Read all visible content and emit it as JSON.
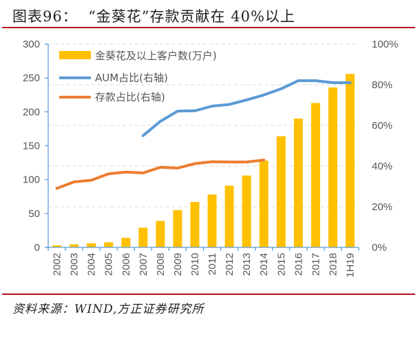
{
  "header": {
    "title": "图表96：  “金葵花”存款贡献在 40%以上"
  },
  "footer": {
    "source": "资料来源：WIND,方正证券研究所"
  },
  "colors": {
    "bars": "#FFC000",
    "aum_line": "#5B9BD5",
    "deposit_line": "#ED7D31",
    "axis": "#5B9BD5",
    "grid": "#D9D9D9",
    "rule": "#B3121C"
  },
  "chart_data": {
    "type": "bar",
    "title": "“金葵花”存款贡献在 40%以上",
    "xlabel": "",
    "ylabel": "",
    "categories": [
      "2002",
      "2003",
      "2004",
      "2005",
      "2006",
      "2007",
      "2008",
      "2009",
      "2010",
      "2011",
      "2012",
      "2013",
      "2014",
      "2015",
      "2016",
      "2017",
      "2018",
      "1H19"
    ],
    "ylim": [
      0,
      300
    ],
    "y_ticks": [
      0,
      50,
      100,
      150,
      200,
      250,
      300
    ],
    "y2lim": [
      0,
      100
    ],
    "y2_ticks": [
      "0%",
      "20%",
      "40%",
      "60%",
      "80%",
      "100%"
    ],
    "y2_tick_values": [
      0,
      20,
      40,
      60,
      80,
      100
    ],
    "grid": "horizontal dashed at right-axis ticks",
    "legend_position": "top-left",
    "series": [
      {
        "name": "金葵花及以上客户数(万户)",
        "type": "bar",
        "axis": "left",
        "values": [
          3,
          4.5,
          6,
          7.5,
          14,
          29,
          39,
          55,
          67,
          78,
          91,
          106,
          128,
          164,
          190,
          213,
          236,
          256
        ]
      },
      {
        "name": "AUM占比(右轴)",
        "type": "line",
        "axis": "right",
        "unit": "%",
        "values": [
          null,
          null,
          null,
          null,
          null,
          55,
          62,
          67,
          67.2,
          69.5,
          70.3,
          72.5,
          75,
          78,
          82,
          82,
          81,
          81
        ]
      },
      {
        "name": "存款占比(右轴)",
        "type": "line",
        "axis": "right",
        "unit": "%",
        "values": [
          29,
          32.2,
          33,
          36.2,
          37,
          36.6,
          39.4,
          39,
          41.2,
          42.1,
          42,
          42,
          43,
          null,
          null,
          null,
          null,
          null
        ]
      }
    ]
  }
}
